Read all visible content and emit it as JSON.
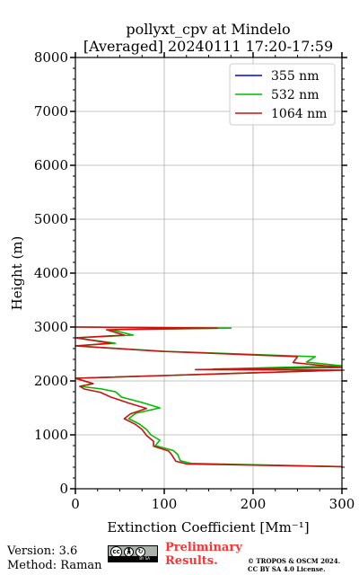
{
  "chart_data": {
    "type": "line",
    "title_line1": "pollyxt_cpv at Mindelo",
    "title_line2": "[Averaged] 20240111 17:20-17:59",
    "xlabel": "Extinction Coefficient [Mm⁻¹]",
    "ylabel": "Height (m)",
    "xlim": [
      0,
      300
    ],
    "ylim": [
      0,
      8000
    ],
    "x_ticks": [
      0,
      100,
      200,
      300
    ],
    "y_ticks": [
      0,
      1000,
      2000,
      3000,
      4000,
      5000,
      6000,
      7000,
      8000
    ],
    "grid": true,
    "legend_position": "top-right",
    "series": [
      {
        "name": "355 nm",
        "color": "#0000ff",
        "points": []
      },
      {
        "name": "532 nm",
        "color": "#00bb00",
        "points": [
          [
            300,
            410
          ],
          [
            130,
            470
          ],
          [
            118,
            520
          ],
          [
            115,
            640
          ],
          [
            110,
            710
          ],
          [
            90,
            800
          ],
          [
            95,
            900
          ],
          [
            85,
            1000
          ],
          [
            80,
            1100
          ],
          [
            72,
            1200
          ],
          [
            60,
            1300
          ],
          [
            68,
            1400
          ],
          [
            95,
            1500
          ],
          [
            75,
            1600
          ],
          [
            52,
            1700
          ],
          [
            45,
            1800
          ],
          [
            30,
            1850
          ],
          [
            5,
            1900
          ],
          [
            20,
            1950
          ],
          [
            0,
            2050
          ],
          [
            100,
            2100
          ],
          [
            300,
            2200
          ],
          [
            155,
            2220
          ],
          [
            300,
            2280
          ],
          [
            260,
            2350
          ],
          [
            270,
            2450
          ],
          [
            100,
            2550
          ],
          [
            0,
            2650
          ],
          [
            45,
            2700
          ],
          [
            0,
            2800
          ],
          [
            65,
            2850
          ],
          [
            40,
            2950
          ],
          [
            175,
            2980
          ],
          [
            0,
            3000
          ]
        ]
      },
      {
        "name": "1064 nm",
        "color": "#cc1111",
        "points": [
          [
            300,
            410
          ],
          [
            125,
            460
          ],
          [
            113,
            510
          ],
          [
            108,
            640
          ],
          [
            105,
            700
          ],
          [
            88,
            790
          ],
          [
            88,
            880
          ],
          [
            80,
            990
          ],
          [
            75,
            1100
          ],
          [
            68,
            1190
          ],
          [
            55,
            1300
          ],
          [
            62,
            1390
          ],
          [
            80,
            1490
          ],
          [
            60,
            1590
          ],
          [
            40,
            1700
          ],
          [
            28,
            1790
          ],
          [
            10,
            1850
          ],
          [
            5,
            1900
          ],
          [
            20,
            1950
          ],
          [
            0,
            2050
          ],
          [
            100,
            2100
          ],
          [
            300,
            2200
          ],
          [
            135,
            2210
          ],
          [
            300,
            2250
          ],
          [
            245,
            2340
          ],
          [
            250,
            2450
          ],
          [
            95,
            2550
          ],
          [
            0,
            2650
          ],
          [
            40,
            2700
          ],
          [
            0,
            2800
          ],
          [
            55,
            2850
          ],
          [
            35,
            2950
          ],
          [
            160,
            2980
          ],
          [
            0,
            3000
          ]
        ]
      }
    ]
  },
  "footer": {
    "version": "Version: 3.6",
    "method": "Method: Raman",
    "badge_by": "BY",
    "badge_sa": "SA",
    "preliminary_line1": "Preliminary",
    "preliminary_line2": "Results.",
    "copyright_line1": "© TROPOS & OSCM 2024.",
    "copyright_line2": "CC BY SA 4.0 License."
  }
}
